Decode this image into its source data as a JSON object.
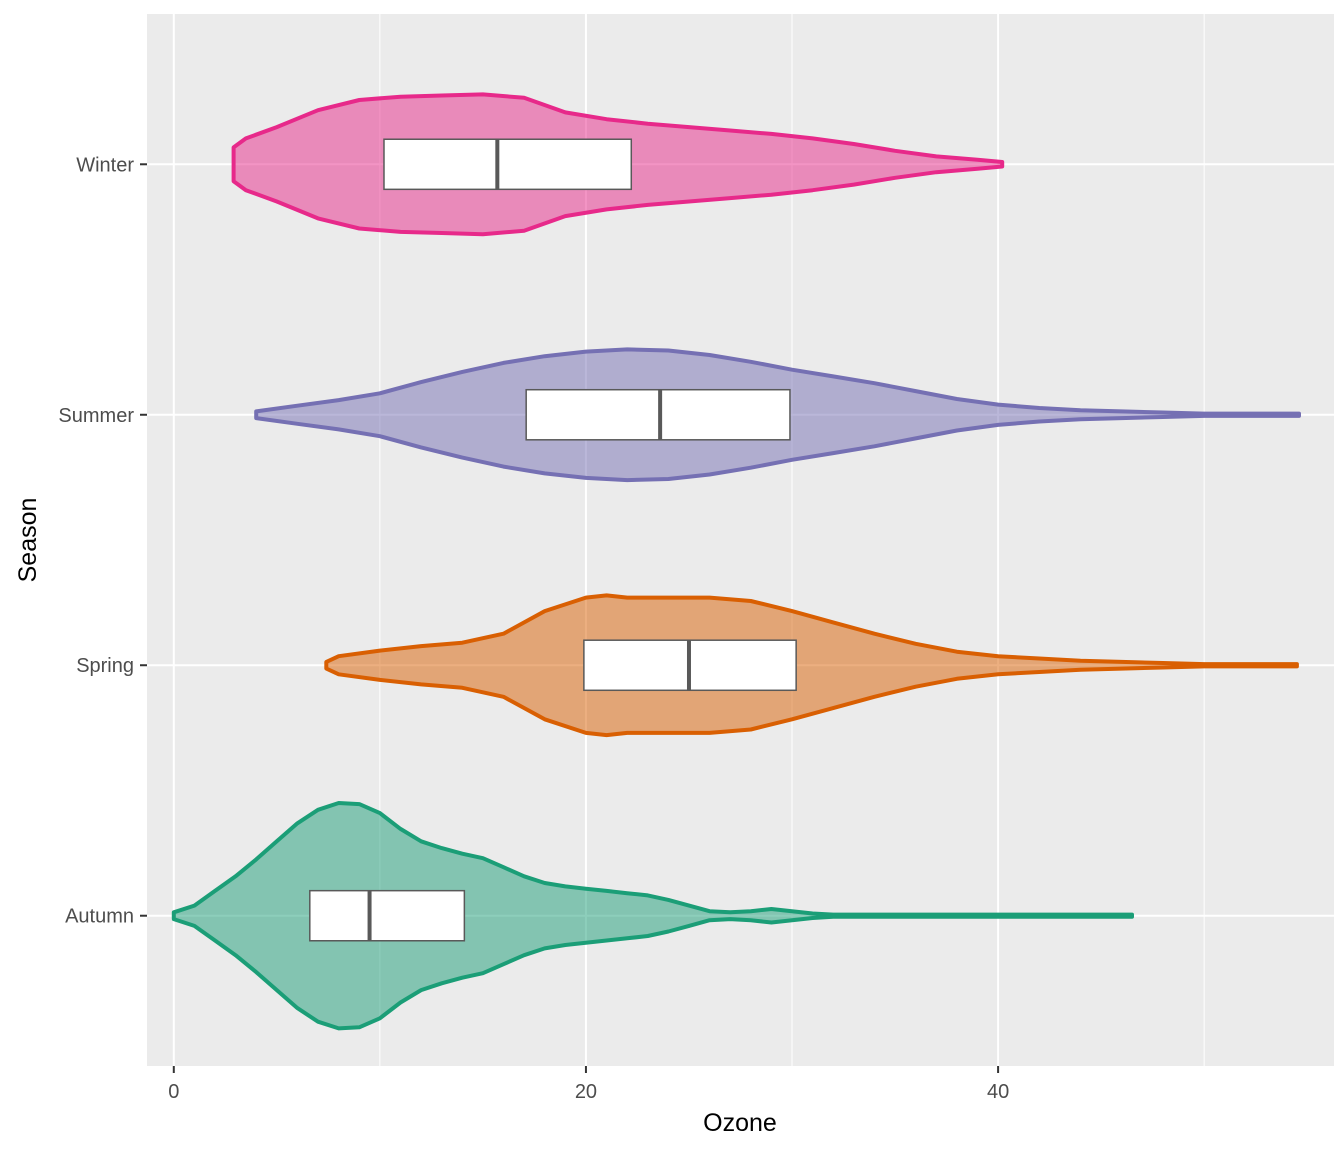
{
  "chart_data": {
    "type": "violin",
    "title": "",
    "xlabel": "Ozone",
    "ylabel": "Season",
    "xlim": [
      -1.3,
      56.3
    ],
    "x_ticks": [
      "0",
      "20",
      "40"
    ],
    "x_tick_values": [
      0,
      20,
      40
    ],
    "grid": true,
    "legend": "none",
    "panel_background": "#EBEBEB",
    "grid_color": "#FFFFFF",
    "box_fill": "#FFFFFF",
    "box_stroke": "#595959",
    "categories": [
      "Autumn",
      "Spring",
      "Summer",
      "Winter"
    ],
    "series": [
      {
        "name": "Autumn",
        "color": "#1B9E77",
        "box": {
          "q1": 6.6,
          "median": 9.5,
          "q3": 14.1
        },
        "density": [
          [
            0.0,
            0.03
          ],
          [
            1.0,
            0.09
          ],
          [
            2.0,
            0.22
          ],
          [
            3.0,
            0.35
          ],
          [
            4.0,
            0.5
          ],
          [
            5.0,
            0.66
          ],
          [
            6.0,
            0.82
          ],
          [
            7.0,
            0.94
          ],
          [
            8.0,
            1.0
          ],
          [
            9.0,
            0.99
          ],
          [
            10.0,
            0.91
          ],
          [
            11.0,
            0.77
          ],
          [
            12.0,
            0.66
          ],
          [
            13.0,
            0.6
          ],
          [
            14.0,
            0.55
          ],
          [
            15.0,
            0.51
          ],
          [
            16.0,
            0.43
          ],
          [
            17.0,
            0.35
          ],
          [
            18.0,
            0.29
          ],
          [
            19.0,
            0.26
          ],
          [
            20.0,
            0.24
          ],
          [
            21.0,
            0.22
          ],
          [
            22.0,
            0.2
          ],
          [
            23.0,
            0.18
          ],
          [
            24.0,
            0.14
          ],
          [
            25.0,
            0.09
          ],
          [
            26.0,
            0.04
          ],
          [
            27.0,
            0.03
          ],
          [
            28.0,
            0.04
          ],
          [
            29.0,
            0.06
          ],
          [
            30.0,
            0.04
          ],
          [
            31.0,
            0.02
          ],
          [
            32.0,
            0.01
          ],
          [
            35.0,
            0.01
          ],
          [
            40.0,
            0.01
          ],
          [
            45.0,
            0.01
          ],
          [
            46.5,
            0.01
          ]
        ]
      },
      {
        "name": "Spring",
        "color": "#D95F02",
        "box": {
          "q1": 19.9,
          "median": 25.0,
          "q3": 30.2
        },
        "density": [
          [
            7.4,
            0.03
          ],
          [
            8.0,
            0.08
          ],
          [
            10.0,
            0.13
          ],
          [
            12.0,
            0.17
          ],
          [
            14.0,
            0.2
          ],
          [
            16.0,
            0.28
          ],
          [
            18.0,
            0.48
          ],
          [
            20.0,
            0.6
          ],
          [
            21.0,
            0.62
          ],
          [
            22.0,
            0.6
          ],
          [
            24.0,
            0.6
          ],
          [
            26.0,
            0.6
          ],
          [
            28.0,
            0.57
          ],
          [
            30.0,
            0.48
          ],
          [
            32.0,
            0.38
          ],
          [
            34.0,
            0.28
          ],
          [
            36.0,
            0.19
          ],
          [
            38.0,
            0.12
          ],
          [
            40.0,
            0.08
          ],
          [
            42.0,
            0.06
          ],
          [
            44.0,
            0.04
          ],
          [
            46.0,
            0.03
          ],
          [
            48.0,
            0.02
          ],
          [
            50.0,
            0.01
          ],
          [
            54.5,
            0.01
          ]
        ]
      },
      {
        "name": "Summer",
        "color": "#7570B3",
        "box": {
          "q1": 17.1,
          "median": 23.6,
          "q3": 29.9
        },
        "density": [
          [
            4.0,
            0.03
          ],
          [
            6.0,
            0.08
          ],
          [
            8.0,
            0.13
          ],
          [
            10.0,
            0.19
          ],
          [
            12.0,
            0.29
          ],
          [
            14.0,
            0.38
          ],
          [
            16.0,
            0.46
          ],
          [
            18.0,
            0.52
          ],
          [
            20.0,
            0.56
          ],
          [
            22.0,
            0.58
          ],
          [
            24.0,
            0.57
          ],
          [
            26.0,
            0.53
          ],
          [
            28.0,
            0.47
          ],
          [
            30.0,
            0.4
          ],
          [
            32.0,
            0.34
          ],
          [
            34.0,
            0.28
          ],
          [
            36.0,
            0.21
          ],
          [
            38.0,
            0.14
          ],
          [
            40.0,
            0.09
          ],
          [
            42.0,
            0.06
          ],
          [
            44.0,
            0.04
          ],
          [
            46.0,
            0.03
          ],
          [
            48.0,
            0.02
          ],
          [
            50.0,
            0.01
          ],
          [
            54.6,
            0.01
          ]
        ]
      },
      {
        "name": "Winter",
        "color": "#E7298A",
        "box": {
          "q1": 10.2,
          "median": 15.7,
          "q3": 22.2
        },
        "density": [
          [
            2.9,
            0.15
          ],
          [
            3.5,
            0.23
          ],
          [
            5.0,
            0.33
          ],
          [
            7.0,
            0.48
          ],
          [
            9.0,
            0.57
          ],
          [
            11.0,
            0.6
          ],
          [
            13.0,
            0.61
          ],
          [
            15.0,
            0.62
          ],
          [
            17.0,
            0.59
          ],
          [
            19.0,
            0.46
          ],
          [
            21.0,
            0.4
          ],
          [
            23.0,
            0.36
          ],
          [
            25.0,
            0.33
          ],
          [
            27.0,
            0.3
          ],
          [
            29.0,
            0.27
          ],
          [
            31.0,
            0.23
          ],
          [
            33.0,
            0.18
          ],
          [
            35.0,
            0.12
          ],
          [
            37.0,
            0.07
          ],
          [
            39.0,
            0.04
          ],
          [
            40.2,
            0.02
          ]
        ]
      }
    ]
  }
}
